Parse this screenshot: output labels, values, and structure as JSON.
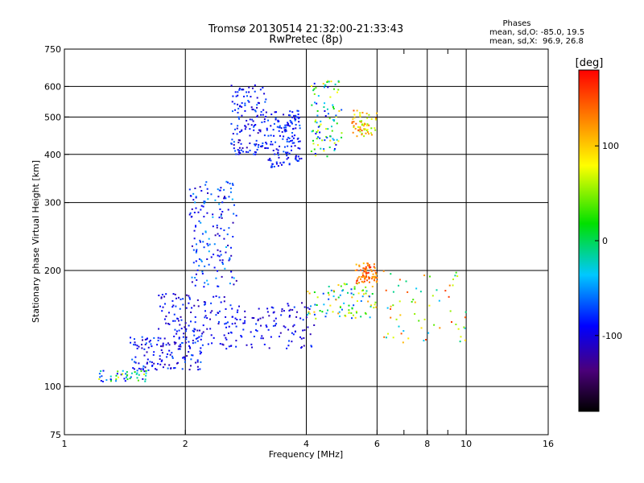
{
  "chart_data": {
    "type": "scatter",
    "title": "Tromsø 20130514 21:32:00-21:33:43",
    "subtitle": "RwPretec (8p)",
    "xlabel": "Frequency [MHz]",
    "ylabel": "Stationary phase Virtual Height [km]",
    "x_scale": "log",
    "y_scale": "log",
    "xlim": [
      1,
      16
    ],
    "ylim": [
      75,
      750
    ],
    "x_ticks": [
      "1",
      "2",
      "4",
      "6",
      "8",
      "10",
      "16"
    ],
    "x_minor_ticks": [
      7,
      9
    ],
    "y_ticks": [
      "75",
      "100",
      "200",
      "300",
      "400",
      "500",
      "600",
      "750"
    ],
    "grid_x": [
      2,
      4,
      6,
      8,
      10
    ],
    "grid_y": [
      100,
      200,
      300,
      400,
      500,
      600
    ],
    "stats": {
      "heading": "Phases",
      "line1": "mean, sd,O: -85.0, 19.5",
      "line2": "mean, sd,X:  96.9, 26.8"
    },
    "colorbar": {
      "label": "[deg]",
      "range": [
        -180,
        180
      ],
      "ticks": [
        "100",
        "0",
        "-100"
      ],
      "colormap": "rainbow"
    },
    "series": [
      {
        "clusters": [
          {
            "x": [
              2.6,
              3.2
            ],
            "y": [
              400,
              610
            ],
            "phase": [
              -120,
              -60
            ],
            "density": 0.9
          },
          {
            "x": [
              3.2,
              3.9
            ],
            "y": [
              370,
              520
            ],
            "phase": [
              -110,
              -60
            ],
            "density": 0.9
          },
          {
            "x": [
              4.1,
              4.9
            ],
            "y": [
              395,
              620
            ],
            "phase": [
              -110,
              100
            ],
            "density": 0.6
          },
          {
            "x": [
              5.2,
              6.0
            ],
            "y": [
              440,
              520
            ],
            "phase": [
              40,
              150
            ],
            "density": 0.4
          },
          {
            "x": [
              2.05,
              2.7
            ],
            "y": [
              180,
              340
            ],
            "phase": [
              -120,
              -40
            ],
            "density": 1
          },
          {
            "x": [
              1.7,
              2.6
            ],
            "y": [
              125,
              175
            ],
            "phase": [
              -120,
              -70
            ],
            "density": 0.9
          },
          {
            "x": [
              1.45,
              2.2
            ],
            "y": [
              110,
              135
            ],
            "phase": [
              -120,
              -60
            ],
            "density": 0.8
          },
          {
            "x": [
              2.6,
              4.2
            ],
            "y": [
              125,
              165
            ],
            "phase": [
              -120,
              -70
            ],
            "density": 0.7
          },
          {
            "x": [
              4.0,
              6.0
            ],
            "y": [
              150,
              185
            ],
            "phase": [
              -80,
              120
            ],
            "density": 0.6
          },
          {
            "x": [
              5.3,
              6.0
            ],
            "y": [
              185,
              210
            ],
            "phase": [
              100,
              170
            ],
            "density": 0.5
          },
          {
            "x": [
              6.2,
              10.0
            ],
            "y": [
              130,
              200
            ],
            "phase": [
              -40,
              160
            ],
            "density": 0.4
          },
          {
            "x": [
              1.2,
              1.6
            ],
            "y": [
              103,
              110
            ],
            "phase": [
              -110,
              80
            ],
            "density": 0.3
          }
        ]
      }
    ]
  }
}
